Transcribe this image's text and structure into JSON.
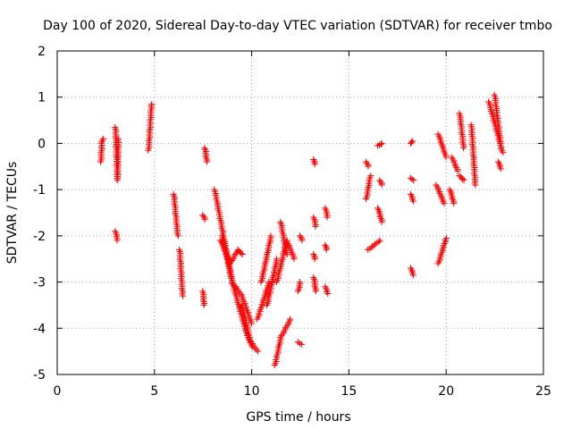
{
  "chart_data": {
    "type": "scatter",
    "title": "Day 100 of 2020, Sidereal Day-to-day VTEC variation (SDTVAR) for receiver tmbo",
    "xlabel": "GPS time / hours",
    "ylabel": "SDTVAR / TECUs",
    "xlim": [
      0,
      25
    ],
    "ylim": [
      -5,
      2
    ],
    "xticks": [
      0,
      5,
      10,
      15,
      20,
      25
    ],
    "yticks": [
      -5,
      -4,
      -3,
      -2,
      -1,
      0,
      1,
      2
    ],
    "xtick_labels": [
      "0",
      "5",
      "10",
      "15",
      "20",
      "25"
    ],
    "ytick_labels": [
      "-5",
      "-4",
      "-3",
      "-2",
      "-1",
      "0",
      "1",
      "2"
    ],
    "grid": true,
    "marker": "+",
    "color": "#ff0000",
    "series": [
      {
        "name": "tmbo",
        "clusters": [
          [
            [
              2.25,
              -0.4
            ],
            [
              2.3,
              0.0
            ],
            [
              2.35,
              0.1
            ]
          ],
          [
            [
              3.0,
              0.35
            ],
            [
              3.1,
              -0.8
            ],
            [
              3.15,
              0.1
            ]
          ],
          [
            [
              3.0,
              -1.9
            ],
            [
              3.1,
              -2.1
            ]
          ],
          [
            [
              4.7,
              -0.15
            ],
            [
              4.85,
              0.85
            ]
          ],
          [
            [
              6.0,
              -1.1
            ],
            [
              6.2,
              -2.0
            ]
          ],
          [
            [
              6.3,
              -2.3
            ],
            [
              6.45,
              -3.3
            ]
          ],
          [
            [
              7.6,
              -0.1
            ],
            [
              7.7,
              -0.4
            ]
          ],
          [
            [
              7.5,
              -1.55
            ],
            [
              7.6,
              -1.65
            ]
          ],
          [
            [
              7.5,
              -3.2
            ],
            [
              7.55,
              -3.5
            ]
          ],
          [
            [
              8.1,
              -1.0
            ],
            [
              9.0,
              -3.0
            ],
            [
              9.8,
              -4.2
            ],
            [
              10.3,
              -4.5
            ]
          ],
          [
            [
              8.4,
              -2.1
            ],
            [
              8.9,
              -2.6
            ],
            [
              9.3,
              -2.3
            ],
            [
              9.5,
              -2.4
            ]
          ],
          [
            [
              8.5,
              -2.0
            ],
            [
              9.0,
              -3.0
            ],
            [
              9.5,
              -3.3
            ],
            [
              10.0,
              -3.9
            ]
          ],
          [
            [
              9.5,
              -3.5
            ],
            [
              10.0,
              -4.4
            ]
          ],
          [
            [
              10.5,
              -3.0
            ],
            [
              11.0,
              -2.0
            ]
          ],
          [
            [
              10.3,
              -3.8
            ],
            [
              10.9,
              -3.0
            ]
          ],
          [
            [
              10.8,
              -3.5
            ],
            [
              11.3,
              -2.5
            ]
          ],
          [
            [
              11.2,
              -4.8
            ],
            [
              11.5,
              -4.2
            ],
            [
              12.0,
              -3.8
            ]
          ],
          [
            [
              11.3,
              -3.0
            ],
            [
              11.8,
              -2.1
            ],
            [
              12.2,
              -2.5
            ]
          ],
          [
            [
              11.5,
              -1.7
            ],
            [
              11.8,
              -2.4
            ]
          ],
          [
            [
              12.4,
              -3.2
            ],
            [
              12.5,
              -3.0
            ]
          ],
          [
            [
              12.4,
              -4.3
            ],
            [
              12.55,
              -4.35
            ]
          ],
          [
            [
              12.5,
              -2.0
            ],
            [
              12.6,
              -2.1
            ]
          ],
          [
            [
              13.2,
              -0.35
            ],
            [
              13.25,
              -0.45
            ]
          ],
          [
            [
              13.2,
              -1.6
            ],
            [
              13.3,
              -1.8
            ]
          ],
          [
            [
              13.2,
              -2.4
            ],
            [
              13.25,
              -2.5
            ]
          ],
          [
            [
              13.2,
              -2.9
            ],
            [
              13.3,
              -3.2
            ]
          ],
          [
            [
              13.8,
              -1.4
            ],
            [
              13.9,
              -1.6
            ]
          ],
          [
            [
              13.8,
              -2.2
            ],
            [
              13.85,
              -2.3
            ]
          ],
          [
            [
              13.8,
              -3.1
            ],
            [
              13.9,
              -3.25
            ]
          ],
          [
            [
              15.9,
              -0.4
            ],
            [
              16.0,
              -0.5
            ]
          ],
          [
            [
              15.9,
              -1.2
            ],
            [
              16.1,
              -0.7
            ]
          ],
          [
            [
              16.0,
              -2.3
            ],
            [
              16.6,
              -2.1
            ]
          ],
          [
            [
              16.5,
              -0.05
            ],
            [
              16.7,
              0.0
            ]
          ],
          [
            [
              16.6,
              -0.8
            ],
            [
              16.7,
              -0.9
            ]
          ],
          [
            [
              16.5,
              -1.4
            ],
            [
              16.7,
              -1.7
            ]
          ],
          [
            [
              18.2,
              0.0
            ],
            [
              18.25,
              0.05
            ]
          ],
          [
            [
              18.2,
              -0.75
            ],
            [
              18.3,
              -0.8
            ]
          ],
          [
            [
              18.2,
              -1.1
            ],
            [
              18.3,
              -1.25
            ]
          ],
          [
            [
              18.2,
              -2.7
            ],
            [
              18.3,
              -2.85
            ]
          ],
          [
            [
              19.6,
              0.2
            ],
            [
              20.0,
              -0.3
            ]
          ],
          [
            [
              19.6,
              -2.6
            ],
            [
              20.0,
              -2.05
            ]
          ],
          [
            [
              19.5,
              -0.9
            ],
            [
              19.9,
              -1.3
            ]
          ],
          [
            [
              20.3,
              -0.3
            ],
            [
              20.6,
              -0.6
            ]
          ],
          [
            [
              20.2,
              -1.0
            ],
            [
              20.4,
              -1.3
            ]
          ],
          [
            [
              20.7,
              0.65
            ],
            [
              20.9,
              -0.1
            ]
          ],
          [
            [
              20.7,
              -0.7
            ],
            [
              20.9,
              -0.8
            ]
          ],
          [
            [
              21.3,
              0.4
            ],
            [
              21.5,
              -0.9
            ]
          ],
          [
            [
              22.2,
              0.9
            ],
            [
              22.9,
              -0.2
            ]
          ],
          [
            [
              22.5,
              1.05
            ],
            [
              22.8,
              0.0
            ]
          ],
          [
            [
              22.7,
              -0.4
            ],
            [
              22.8,
              -0.55
            ]
          ]
        ]
      }
    ]
  }
}
